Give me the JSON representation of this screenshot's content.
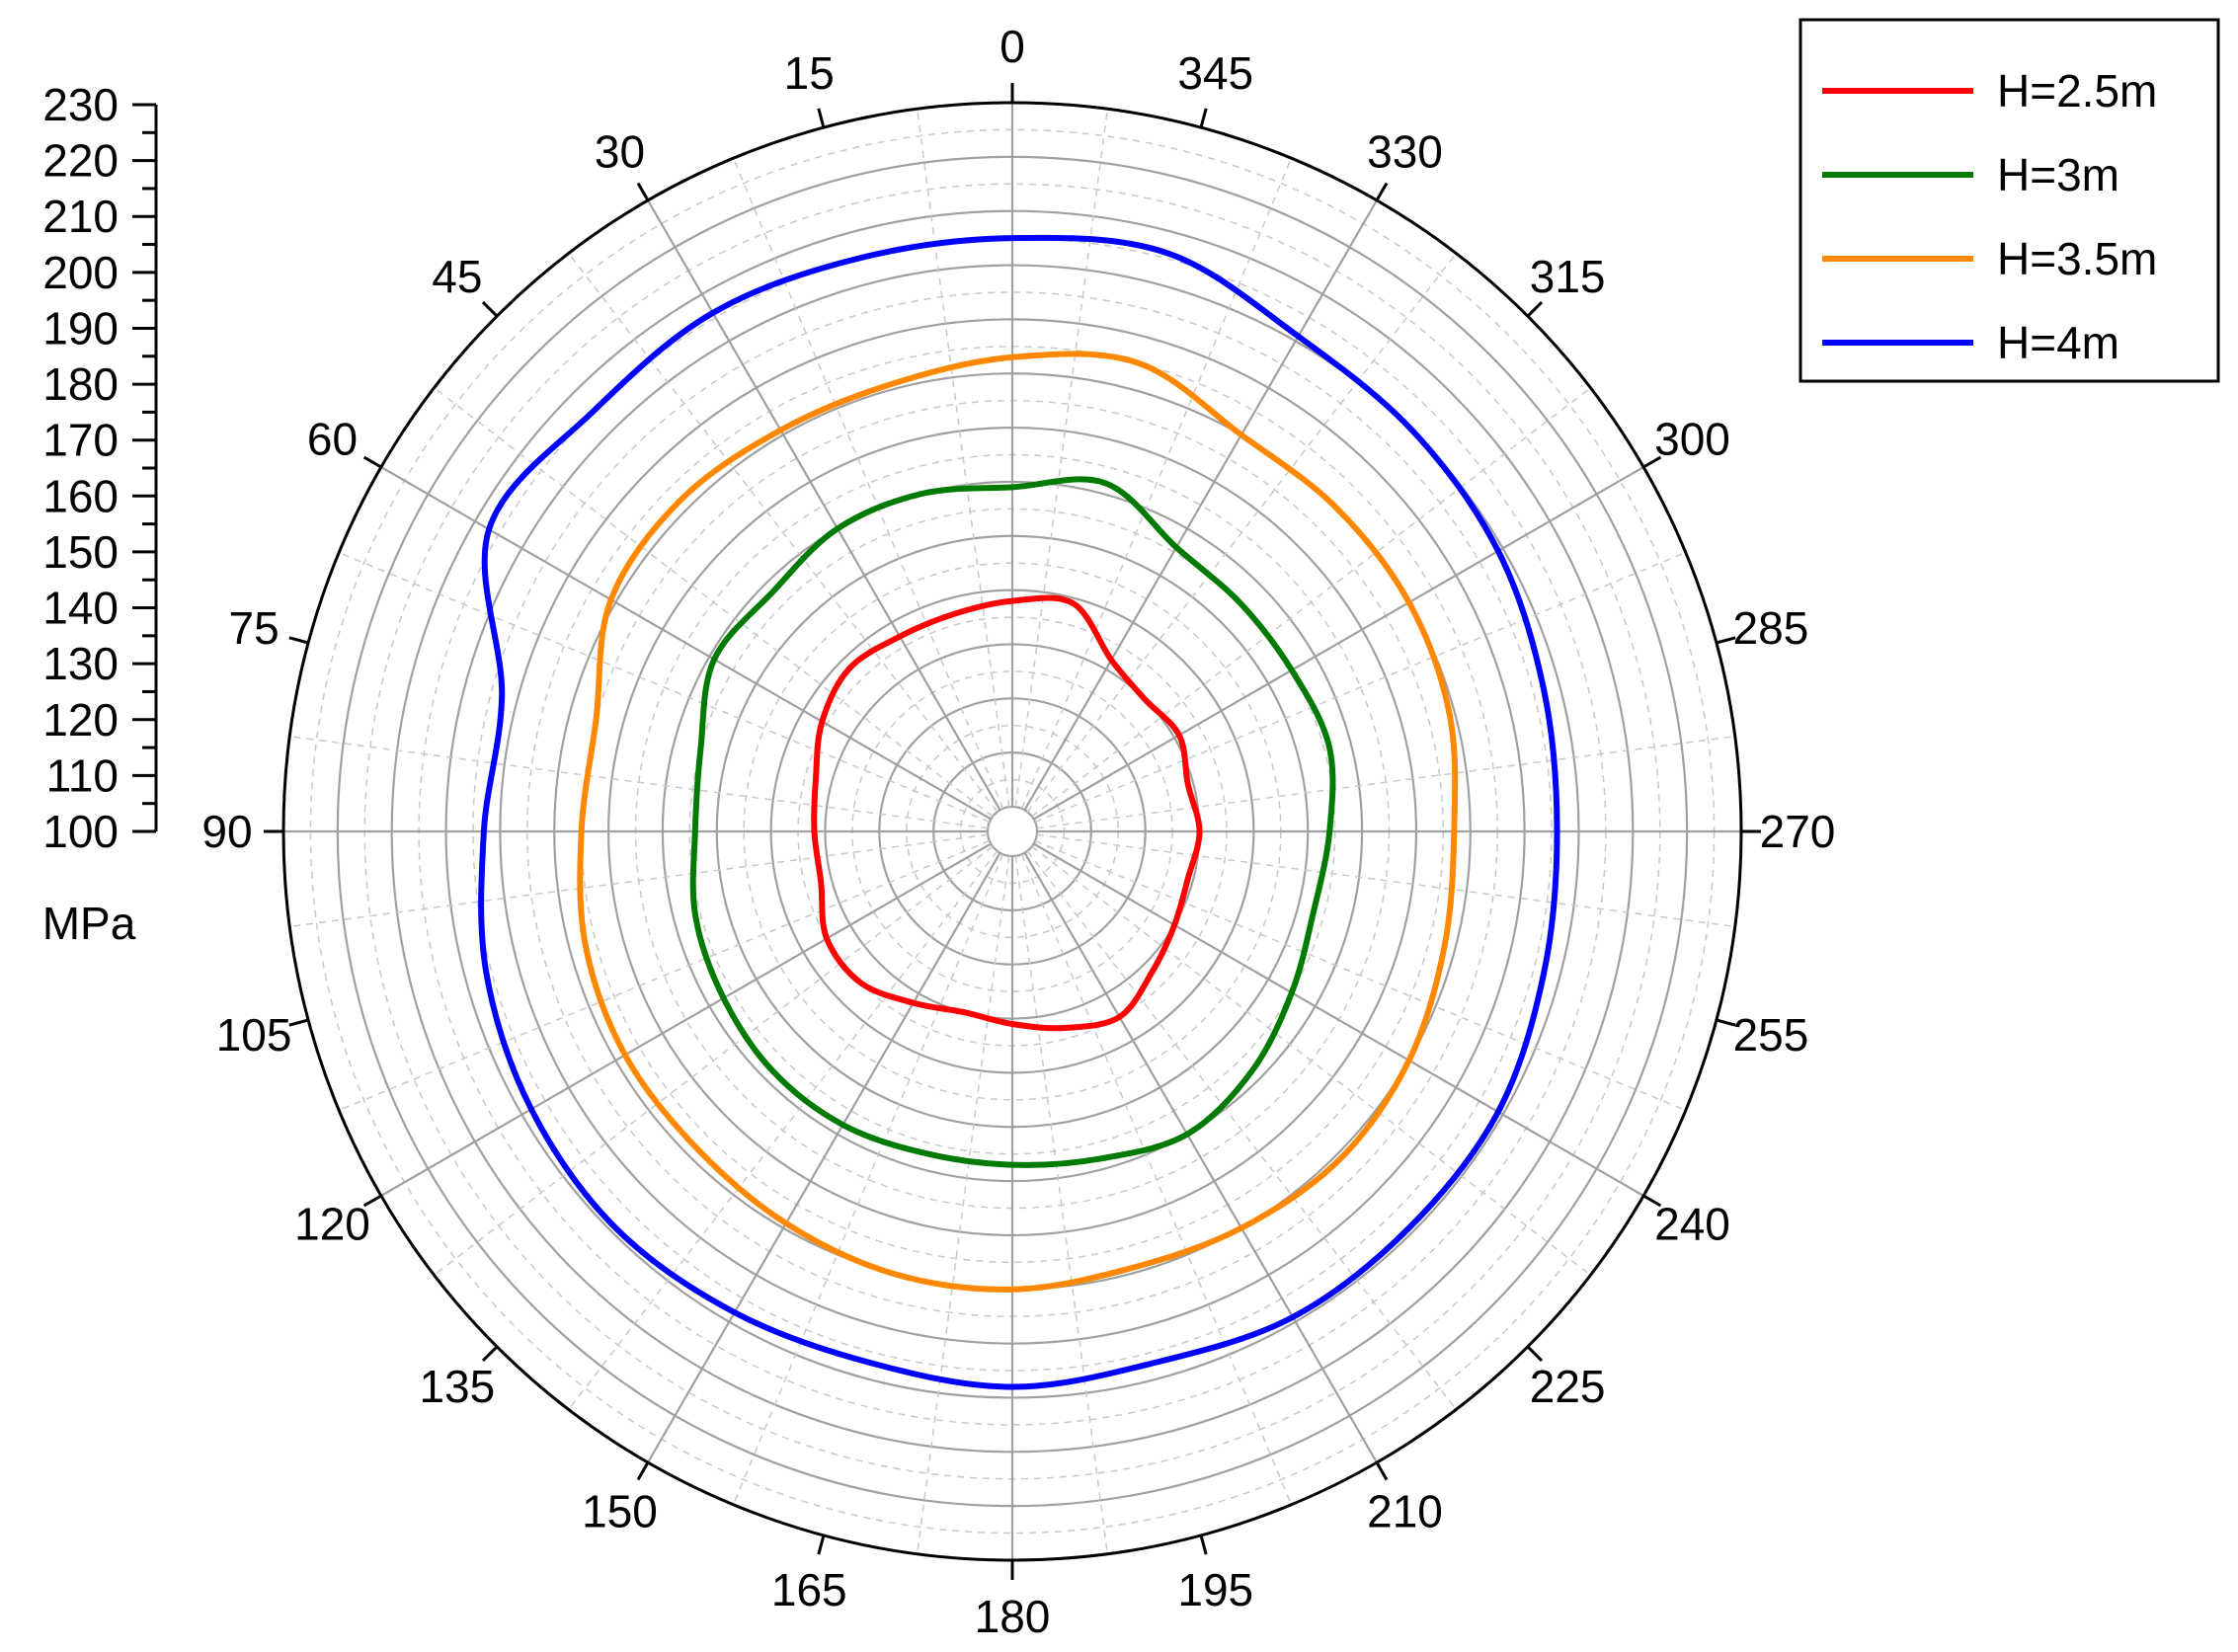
{
  "chart_data": {
    "type": "polar-line",
    "radial_axis": {
      "range": [
        100,
        230
      ],
      "tick_step": 10,
      "tick_labels": [
        "100",
        "110",
        "120",
        "130",
        "140",
        "150",
        "160",
        "170",
        "180",
        "190",
        "200",
        "210",
        "220",
        "230"
      ],
      "unit": "MPa",
      "minor_ticks_per_major": 2
    },
    "angular_axis": {
      "direction": "counterclockwise",
      "zero_position": "top",
      "tick_step_deg": 15,
      "tick_labels": [
        "0",
        "15",
        "30",
        "45",
        "60",
        "75",
        "90",
        "105",
        "120",
        "135",
        "150",
        "165",
        "180",
        "195",
        "210",
        "225",
        "240",
        "255",
        "270",
        "285",
        "300",
        "315",
        "330",
        "345"
      ]
    },
    "grid": true,
    "legend": {
      "position": "top-right"
    },
    "series": [
      {
        "name": "H=2.5m",
        "color": "#ff0000",
        "theta": [
          0,
          15,
          30,
          45,
          60,
          75,
          90,
          105,
          120,
          135,
          150,
          165,
          180,
          195,
          210,
          225,
          240,
          255,
          270,
          285,
          300,
          315,
          330,
          345,
          360
        ],
        "r": [
          138,
          137,
          137,
          138,
          136,
          133,
          132,
          132,
          135,
          135,
          132,
          130,
          131,
          133,
          135,
          132,
          130,
          129,
          130,
          129,
          131,
          130,
          132,
          139,
          138
        ]
      },
      {
        "name": "H=3m",
        "color": "#007a00",
        "theta": [
          0,
          15,
          30,
          45,
          60,
          75,
          90,
          105,
          120,
          135,
          150,
          165,
          180,
          195,
          210,
          225,
          240,
          255,
          270,
          285,
          300,
          315,
          330,
          345,
          360
        ],
        "r": [
          159,
          160,
          160,
          158,
          159,
          155,
          154,
          156,
          157,
          158,
          158,
          157,
          157,
          158,
          160,
          158,
          155,
          153,
          154,
          156,
          155,
          155,
          156,
          162,
          159
        ]
      },
      {
        "name": "H=3.5m",
        "color": "#ff8800",
        "theta": [
          0,
          15,
          30,
          45,
          60,
          75,
          90,
          105,
          120,
          135,
          150,
          165,
          180,
          195,
          210,
          225,
          240,
          255,
          270,
          285,
          300,
          315,
          330,
          345,
          360
        ],
        "r": [
          183,
          181,
          181,
          182,
          181,
          175,
          175,
          177,
          178,
          178,
          179,
          180,
          180,
          179,
          180,
          181,
          180,
          178,
          177,
          179,
          180,
          180,
          180,
          185,
          183
        ]
      },
      {
        "name": "H=4m",
        "color": "#0000ff",
        "theta": [
          0,
          15,
          30,
          45,
          60,
          75,
          90,
          105,
          120,
          135,
          150,
          165,
          180,
          195,
          210,
          225,
          240,
          255,
          270,
          285,
          300,
          315,
          330,
          345,
          360
        ],
        "r": [
          205,
          205,
          206,
          205,
          207,
          193,
          193,
          196,
          198,
          199,
          198,
          197,
          198,
          197,
          199,
          199,
          199,
          197,
          196,
          197,
          199,
          200,
          201,
          206,
          205
        ]
      }
    ]
  }
}
